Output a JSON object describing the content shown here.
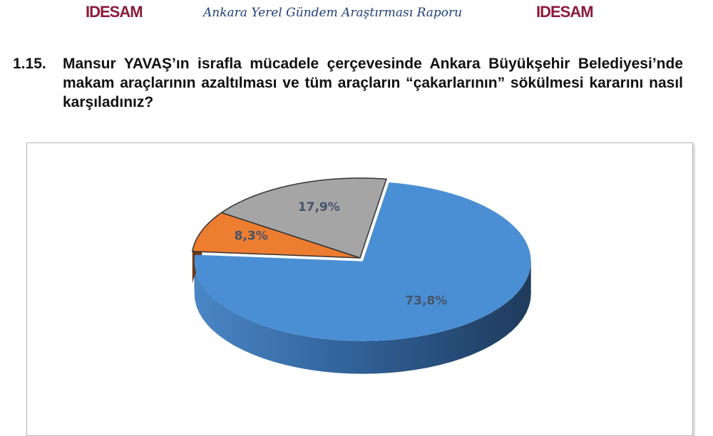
{
  "header": {
    "logo_left": "IDESAM",
    "logo_right": "IDESAM",
    "title": "Ankara Yerel Gündem Araştırması Raporu"
  },
  "question": {
    "number": "1.15.",
    "text": "Mansur YAVAŞ’ın israfla mücadele çerçevesinde Ankara Büyükşehir Belediyesi’nde makam araçlarının azaltılması ve tüm araçların “çakarlarının” sökülmesi kararını nasıl karşıladınız?"
  },
  "chart_data": {
    "type": "pie",
    "style": "3d",
    "slices": [
      {
        "label": "73,8%",
        "value": 73.8,
        "color": "#4a8fd4"
      },
      {
        "label": "8,3%",
        "value": 8.3,
        "color": "#ed7d31"
      },
      {
        "label": "17,9%",
        "value": 17.9,
        "color": "#a5a5a5"
      }
    ],
    "label_color": "#44546a"
  }
}
